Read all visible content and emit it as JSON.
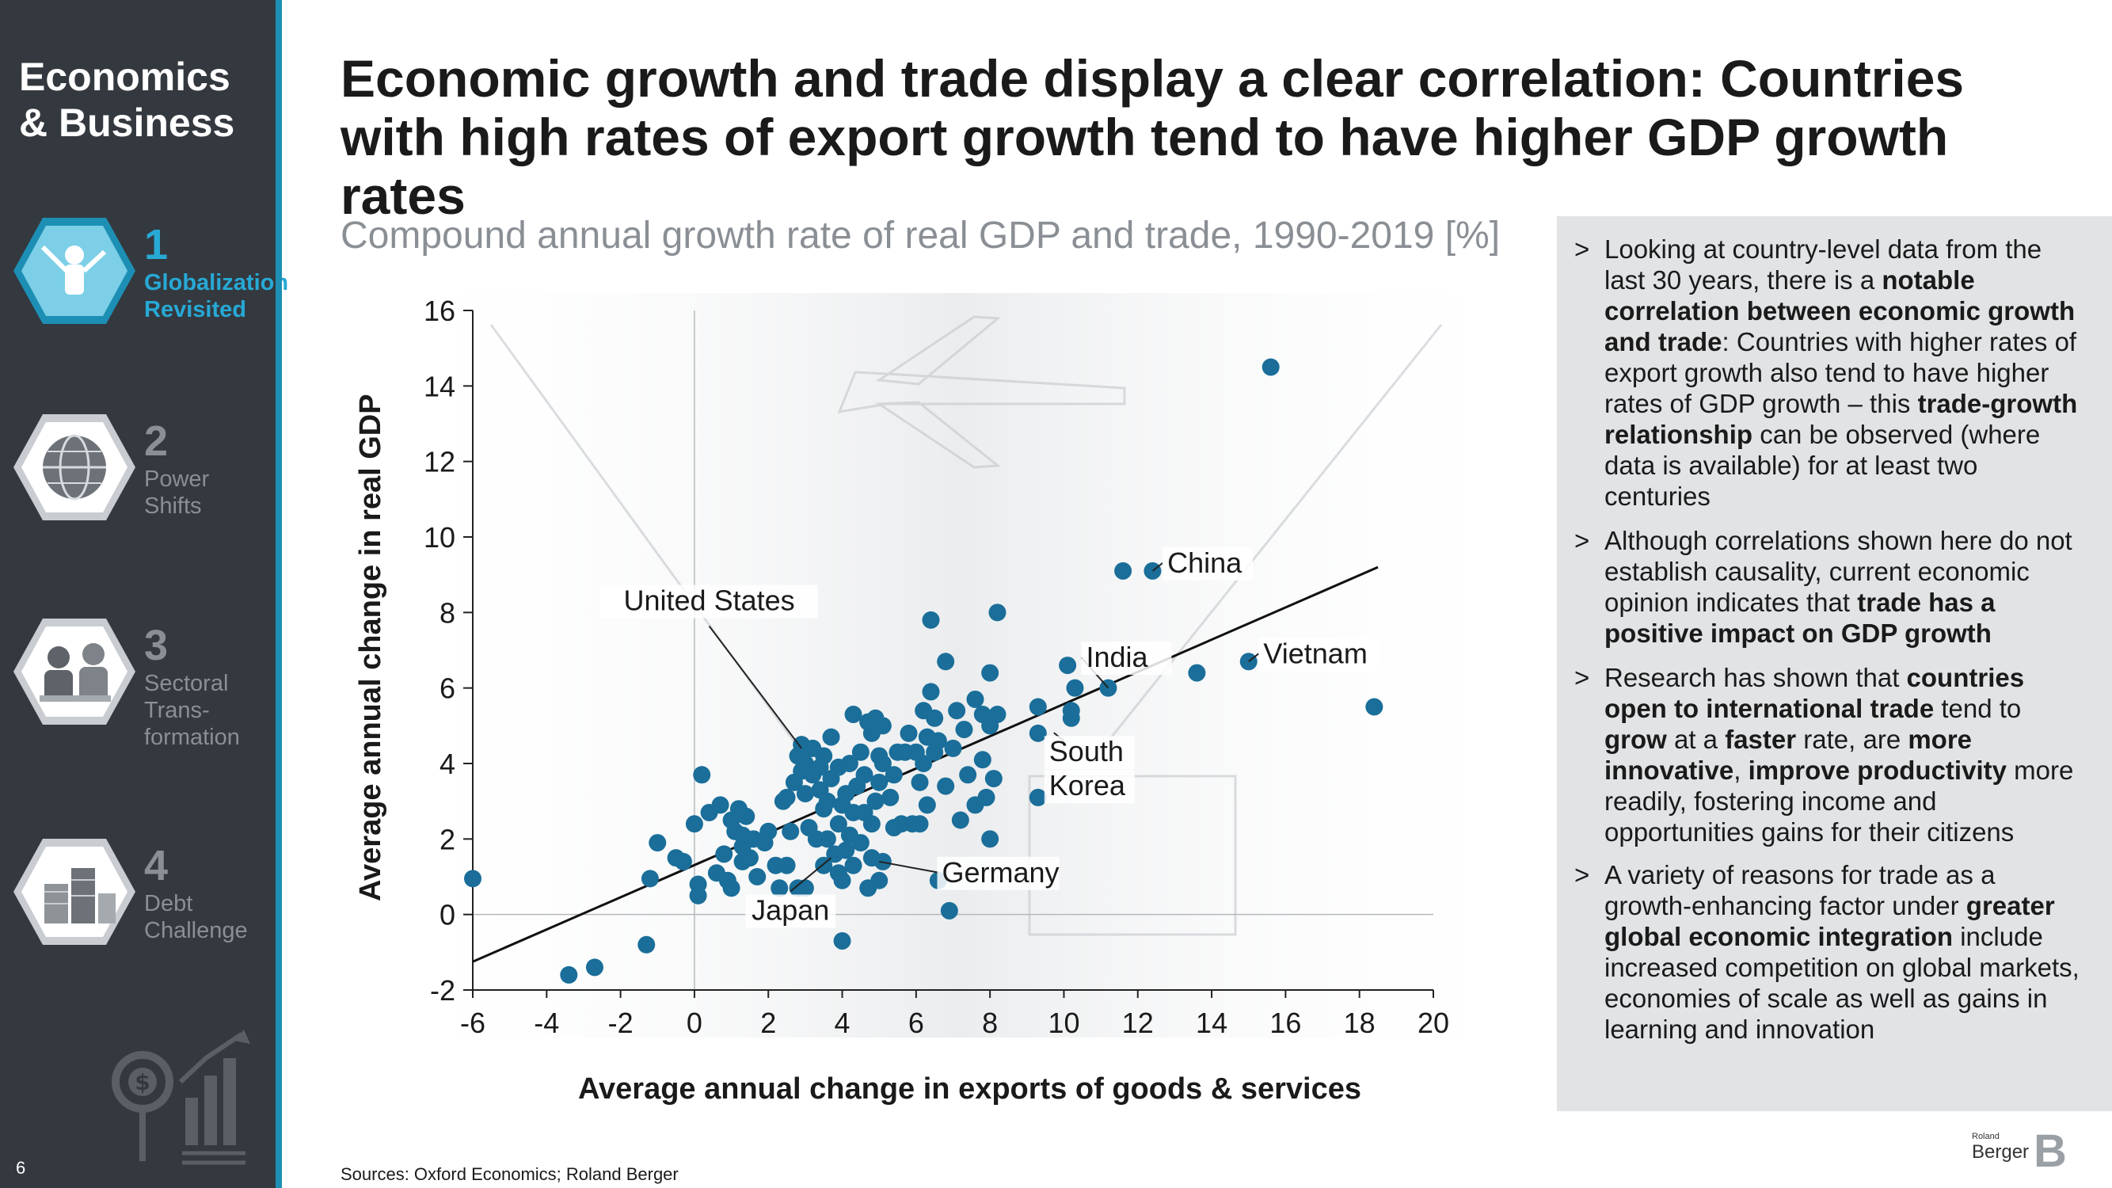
{
  "sidebar": {
    "title_line1": "Economics",
    "title_line2": "& Business",
    "chapters": [
      {
        "num": "1",
        "label_line1": "Globalization",
        "label_line2": "Revisited",
        "label_line3": "",
        "icon": "businessman-icon",
        "active": true
      },
      {
        "num": "2",
        "label_line1": "Power",
        "label_line2": "Shifts",
        "label_line3": "",
        "icon": "globe-icon",
        "active": false
      },
      {
        "num": "3",
        "label_line1": "Sectoral",
        "label_line2": "Trans-",
        "label_line3": "formation",
        "icon": "workers-icon",
        "active": false
      },
      {
        "num": "4",
        "label_line1": "Debt",
        "label_line2": "Challenge",
        "label_line3": "",
        "icon": "coins-icon",
        "active": false
      }
    ],
    "page_number": "6",
    "accent_color": "#1d8fb5"
  },
  "title": "Economic growth and trade display a clear correlation: Countries with high rates of export growth tend to have higher GDP growth rates",
  "source": "Sources: Oxford Economics; Roland Berger",
  "panel": {
    "bullets": [
      [
        {
          "t": "Looking at country-level data from the last 30 years, there is a "
        },
        {
          "t": "notable correlation between economic growth and trade",
          "b": true
        },
        {
          "t": ": Countries with higher rates of export growth also tend to have higher rates of GDP growth – this "
        },
        {
          "t": "trade-growth relationship",
          "b": true
        },
        {
          "t": " can be observed (where data is available) for at least two centuries"
        }
      ],
      [
        {
          "t": "Although correlations shown here do not establish causality, current economic opinion indicates that "
        },
        {
          "t": "trade has a positive impact on GDP growth",
          "b": true
        }
      ],
      [
        {
          "t": "Research has shown that "
        },
        {
          "t": "countries open to international trade",
          "b": true
        },
        {
          "t": " tend to "
        },
        {
          "t": "grow",
          "b": true
        },
        {
          "t": " at a "
        },
        {
          "t": "faster",
          "b": true
        },
        {
          "t": " rate, are "
        },
        {
          "t": "more innovative",
          "b": true
        },
        {
          "t": ", "
        },
        {
          "t": "improve productivity",
          "b": true
        },
        {
          "t": " more readily, fostering income and opportunities gains for their citizens"
        }
      ],
      [
        {
          "t": "A variety of reasons for trade as a growth-enhancing factor under "
        },
        {
          "t": "greater global economic integration",
          "b": true
        },
        {
          "t": " include increased competition on global markets, economies of scale as well as gains in learning and innovation"
        }
      ]
    ],
    "marker": ">"
  },
  "logo": {
    "small": "Roland",
    "text": "Berger",
    "letter": "B"
  },
  "chart_data": {
    "type": "scatter",
    "title": "Compound annual growth rate of real GDP and trade, 1990-2019 [%]",
    "xlabel": "Average annual change in exports of goods & services",
    "ylabel": "Average annual change in real GDP",
    "xlim": [
      -6,
      20
    ],
    "ylim": [
      -2,
      16
    ],
    "xticks": [
      -6,
      -4,
      -2,
      0,
      2,
      4,
      6,
      8,
      10,
      12,
      14,
      16,
      18,
      20
    ],
    "yticks": [
      -2,
      0,
      2,
      4,
      6,
      8,
      10,
      12,
      14,
      16
    ],
    "marker_color": "#1a6e99",
    "trendline": {
      "x": [
        -6,
        18.5
      ],
      "y": [
        -1.25,
        9.2
      ]
    },
    "points": [
      [
        -6.0,
        0.95
      ],
      [
        -3.4,
        -1.6
      ],
      [
        -2.7,
        -1.4
      ],
      [
        -1.3,
        -0.8
      ],
      [
        -1.2,
        0.95
      ],
      [
        -1.0,
        1.9
      ],
      [
        -0.5,
        1.5
      ],
      [
        -0.3,
        1.4
      ],
      [
        0.0,
        2.4
      ],
      [
        0.1,
        0.5
      ],
      [
        0.1,
        0.8
      ],
      [
        0.2,
        3.7
      ],
      [
        0.4,
        2.7
      ],
      [
        0.6,
        1.1
      ],
      [
        0.7,
        2.9
      ],
      [
        0.8,
        1.6
      ],
      [
        0.9,
        0.9
      ],
      [
        1.0,
        2.5
      ],
      [
        1.0,
        0.7
      ],
      [
        1.1,
        2.2
      ],
      [
        1.2,
        2.8
      ],
      [
        1.3,
        1.8
      ],
      [
        1.3,
        2.1
      ],
      [
        1.3,
        1.4
      ],
      [
        1.4,
        2.6
      ],
      [
        1.5,
        1.5
      ],
      [
        1.6,
        2.0
      ],
      [
        1.7,
        1.0
      ],
      [
        1.9,
        1.9
      ],
      [
        2.0,
        2.2
      ],
      [
        2.2,
        1.3
      ],
      [
        2.3,
        0.7
      ],
      [
        2.4,
        3.0
      ],
      [
        2.5,
        1.3
      ],
      [
        2.5,
        3.1
      ],
      [
        2.6,
        2.2
      ],
      [
        2.7,
        3.5
      ],
      [
        2.8,
        4.2
      ],
      [
        2.8,
        0.7
      ],
      [
        2.9,
        4.5
      ],
      [
        2.9,
        3.8
      ],
      [
        3.0,
        4.0
      ],
      [
        3.0,
        3.2
      ],
      [
        3.0,
        0.7
      ],
      [
        3.1,
        2.3
      ],
      [
        3.2,
        3.7
      ],
      [
        3.2,
        4.4
      ],
      [
        3.3,
        2.0
      ],
      [
        3.4,
        3.3
      ],
      [
        3.4,
        3.9
      ],
      [
        3.5,
        2.8
      ],
      [
        3.5,
        4.2
      ],
      [
        3.5,
        1.3
      ],
      [
        3.6,
        2.0
      ],
      [
        3.6,
        3.0
      ],
      [
        3.7,
        3.6
      ],
      [
        3.7,
        4.7
      ],
      [
        3.8,
        1.6
      ],
      [
        3.9,
        1.1
      ],
      [
        3.9,
        2.4
      ],
      [
        3.9,
        3.9
      ],
      [
        4.0,
        0.9
      ],
      [
        4.0,
        2.9
      ],
      [
        4.0,
        -0.7
      ],
      [
        4.1,
        1.7
      ],
      [
        4.1,
        3.2
      ],
      [
        4.2,
        4.0
      ],
      [
        4.2,
        2.1
      ],
      [
        4.3,
        5.3
      ],
      [
        4.3,
        2.7
      ],
      [
        4.3,
        1.3
      ],
      [
        4.4,
        3.4
      ],
      [
        4.5,
        1.9
      ],
      [
        4.5,
        4.3
      ],
      [
        4.6,
        3.7
      ],
      [
        4.6,
        2.7
      ],
      [
        4.7,
        5.1
      ],
      [
        4.7,
        0.7
      ],
      [
        4.8,
        4.8
      ],
      [
        4.8,
        1.5
      ],
      [
        4.8,
        2.4
      ],
      [
        4.9,
        3.0
      ],
      [
        4.9,
        5.2
      ],
      [
        5.0,
        4.2
      ],
      [
        5.0,
        3.5
      ],
      [
        5.0,
        0.9
      ],
      [
        5.1,
        5.0
      ],
      [
        5.1,
        4.0
      ],
      [
        5.1,
        1.4
      ],
      [
        5.3,
        3.1
      ],
      [
        5.4,
        2.3
      ],
      [
        5.4,
        3.7
      ],
      [
        5.5,
        4.3
      ],
      [
        5.6,
        2.4
      ],
      [
        5.7,
        4.3
      ],
      [
        5.8,
        4.8
      ],
      [
        5.9,
        2.4
      ],
      [
        6.0,
        4.3
      ],
      [
        6.1,
        3.5
      ],
      [
        6.1,
        2.4
      ],
      [
        6.2,
        4.0
      ],
      [
        6.2,
        5.4
      ],
      [
        6.3,
        4.7
      ],
      [
        6.3,
        2.9
      ],
      [
        6.4,
        5.9
      ],
      [
        6.4,
        7.8
      ],
      [
        6.5,
        5.2
      ],
      [
        6.5,
        4.3
      ],
      [
        6.6,
        0.9
      ],
      [
        6.6,
        4.6
      ],
      [
        6.8,
        3.4
      ],
      [
        6.8,
        6.7
      ],
      [
        6.9,
        0.1
      ],
      [
        7.0,
        4.4
      ],
      [
        7.1,
        5.4
      ],
      [
        7.2,
        2.5
      ],
      [
        7.3,
        4.9
      ],
      [
        7.4,
        3.7
      ],
      [
        7.6,
        5.7
      ],
      [
        7.6,
        2.9
      ],
      [
        7.8,
        5.3
      ],
      [
        7.8,
        4.1
      ],
      [
        7.9,
        3.1
      ],
      [
        8.0,
        5.0
      ],
      [
        8.0,
        6.4
      ],
      [
        8.1,
        3.6
      ],
      [
        8.0,
        2.0
      ],
      [
        8.2,
        5.3
      ],
      [
        8.2,
        8.0
      ],
      [
        9.3,
        4.8
      ],
      [
        9.3,
        5.5
      ],
      [
        9.3,
        3.1
      ],
      [
        10.1,
        6.6
      ],
      [
        10.2,
        5.2
      ],
      [
        10.2,
        5.4
      ],
      [
        10.3,
        6.0
      ],
      [
        11.2,
        6.0
      ],
      [
        11.6,
        9.1
      ],
      [
        12.4,
        9.1
      ],
      [
        13.6,
        6.4
      ],
      [
        15.0,
        6.7
      ],
      [
        15.6,
        14.5
      ],
      [
        18.4,
        5.5
      ]
    ],
    "annotations": [
      {
        "text": "United States",
        "px": 2.9,
        "py": 4.4,
        "lx": 0.4,
        "ly": 8.1,
        "anchor": "middle"
      },
      {
        "text": "China",
        "px": 12.4,
        "py": 9.1,
        "lx": 12.8,
        "ly": 9.1,
        "anchor": "start"
      },
      {
        "text": "India",
        "px": 11.2,
        "py": 6.0,
        "lx": 10.6,
        "ly": 6.6,
        "anchor": "start"
      },
      {
        "text": "Vietnam",
        "px": 15.0,
        "py": 6.7,
        "lx": 15.4,
        "ly": 6.7,
        "anchor": "start"
      },
      {
        "text": "South",
        "px": 10.0,
        "py": 4.6,
        "lx": 9.6,
        "ly": 4.1,
        "anchor": "start"
      },
      {
        "text": "Korea",
        "px": null,
        "py": null,
        "lx": 9.6,
        "ly": 3.2,
        "anchor": "start"
      },
      {
        "text": "Germany",
        "px": 5.0,
        "py": 1.4,
        "lx": 6.7,
        "ly": 0.9,
        "anchor": "start"
      },
      {
        "text": "Japan",
        "px": 3.7,
        "py": 1.5,
        "lx": 2.6,
        "ly": -0.1,
        "anchor": "middle"
      }
    ]
  }
}
